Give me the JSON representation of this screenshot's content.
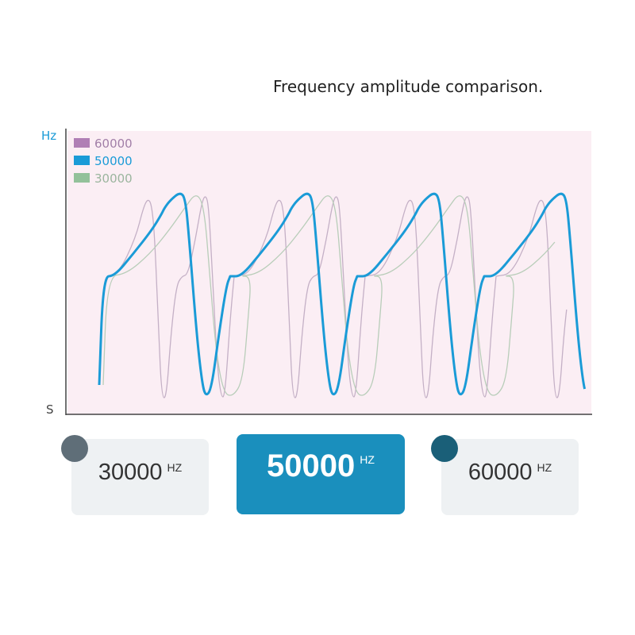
{
  "chart_data": {
    "type": "line",
    "title": "Frequency amplitude comparison.",
    "ylabel": "Hz",
    "xlabel": "S",
    "legend_position": "top-left",
    "grid": false,
    "background": "#fbeef4",
    "series": [
      {
        "name": "60000",
        "color": "#b07fb5",
        "cycles": 4
      },
      {
        "name": "50000",
        "color": "#1a9bd7",
        "cycles": 4
      },
      {
        "name": "30000",
        "color": "#93c19a",
        "cycles": 4
      }
    ]
  },
  "cards": [
    {
      "value": "30000",
      "unit": "HZ",
      "dot_color": "#5f6e78",
      "active": false
    },
    {
      "value": "50000",
      "unit": "HZ",
      "active": true,
      "bg": "#1a8fbd"
    },
    {
      "value": "60000",
      "unit": "HZ",
      "dot_color": "#1a5f78",
      "active": false
    }
  ]
}
